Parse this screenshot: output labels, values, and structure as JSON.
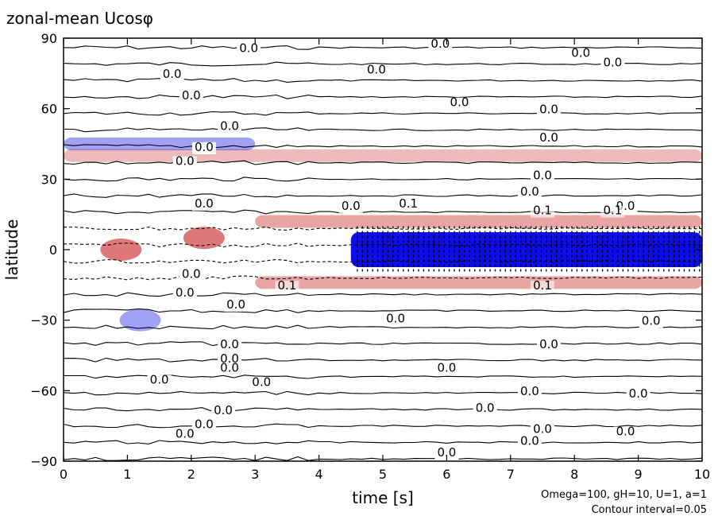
{
  "chart_data": {
    "type": "heatmap",
    "title": "zonal-mean Ucosφ",
    "xlabel": "time [s]",
    "ylabel": "latitude",
    "xlim": [
      0,
      10
    ],
    "ylim": [
      -90,
      90
    ],
    "xticks": [
      "0",
      "1",
      "2",
      "3",
      "4",
      "5",
      "6",
      "7",
      "8",
      "9",
      "10"
    ],
    "yticks": [
      "90",
      "60",
      "30",
      "0",
      "−30",
      "−60",
      "−90"
    ],
    "contour_interval": 0.05,
    "contour_labels": [
      "0.0",
      "0.1",
      "0.1",
      "0.1",
      "0.1"
    ],
    "notes": [
      "Omega=100, gH=10, U=1, a=1",
      "Contour interval=0.05"
    ],
    "colors": {
      "positive": "#d24646",
      "negative": "#0000e6",
      "contour": "#000000"
    },
    "features": [
      {
        "kind": "positive_band",
        "lat": 40,
        "t_start": 0,
        "t_end": 10,
        "amplitude": 0.05
      },
      {
        "kind": "positive_band",
        "lat": 12,
        "t_start": 3,
        "t_end": 10,
        "amplitude": 0.1
      },
      {
        "kind": "positive_band",
        "lat": -14,
        "t_start": 3,
        "t_end": 10,
        "amplitude": 0.1
      },
      {
        "kind": "negative_band",
        "lat": 0,
        "t_start": 4.5,
        "t_end": 10,
        "amplitude": -0.4
      },
      {
        "kind": "positive_blob",
        "lat": 0,
        "t": 0.9,
        "amplitude": 0.2
      },
      {
        "kind": "positive_blob",
        "lat": 5,
        "t": 2.2,
        "amplitude": 0.2
      },
      {
        "kind": "negative_band",
        "lat": 45,
        "t_start": 0,
        "t_end": 3,
        "amplitude": -0.05
      },
      {
        "kind": "negative_blob",
        "lat": -30,
        "t": 1.2,
        "amplitude": -0.05
      }
    ]
  }
}
